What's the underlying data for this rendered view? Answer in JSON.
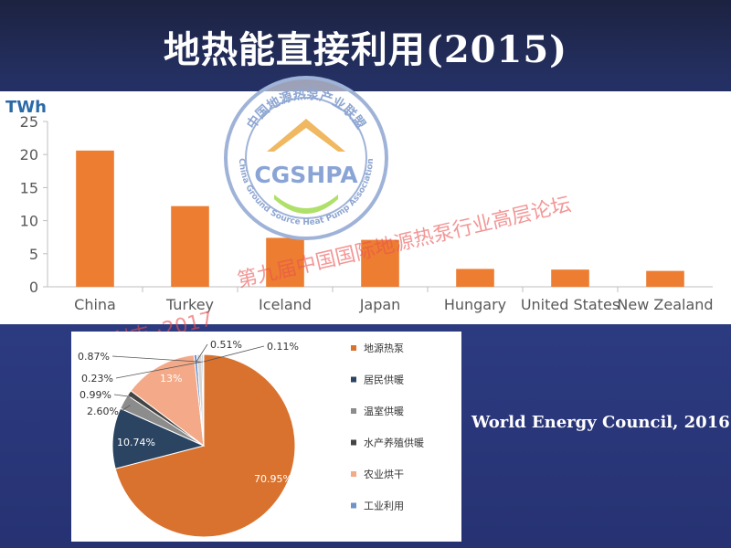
{
  "slide": {
    "title": "地热能直接利用(2015)",
    "source": "World Energy Council, 2016"
  },
  "watermark": {
    "logo_text": "CGSHPA",
    "ring_top": "中国地源热泵产业联盟",
    "ring_bottom": "China Ground Source Heat Pump Association",
    "forum": "第九届中国国际地源热泵行业高层论坛",
    "sponsor": "海利丰 ·2017"
  },
  "colors": {
    "bar": "#ed7d31",
    "background": "#2c3a80"
  },
  "chart_data": [
    {
      "type": "bar",
      "ylabel": "TWh",
      "ylim": [
        0,
        25
      ],
      "yticks": [
        0,
        5,
        10,
        15,
        20,
        25
      ],
      "categories": [
        "China",
        "Turkey",
        "Iceland",
        "Japan",
        "Hungary",
        "United States",
        "New Zealand"
      ],
      "values": [
        20.6,
        12.2,
        7.4,
        7.1,
        2.7,
        2.6,
        2.4
      ],
      "grid": false
    },
    {
      "type": "pie",
      "legend_position": "right",
      "labels": [
        "地源热泵",
        "居民供暖",
        "温室供暖",
        "水产养殖供暖",
        "农业烘干",
        "工业利用",
        "",
        "",
        ""
      ],
      "values": [
        70.95,
        10.74,
        2.6,
        0.99,
        13,
        0.51,
        0.87,
        0.23,
        0.11
      ],
      "value_labels": [
        "70.95%",
        "10.74%",
        "2.60%",
        "0.99%",
        "13%",
        "0.51%",
        "0.87%",
        "0.23%",
        "0.11%"
      ],
      "colors": [
        "#d9722e",
        "#2b4462",
        "#8c8c8c",
        "#444444",
        "#f4a988",
        "#6f93c8",
        "#d6d6d6",
        "#4a79b0",
        "#9ec1dd"
      ]
    }
  ]
}
